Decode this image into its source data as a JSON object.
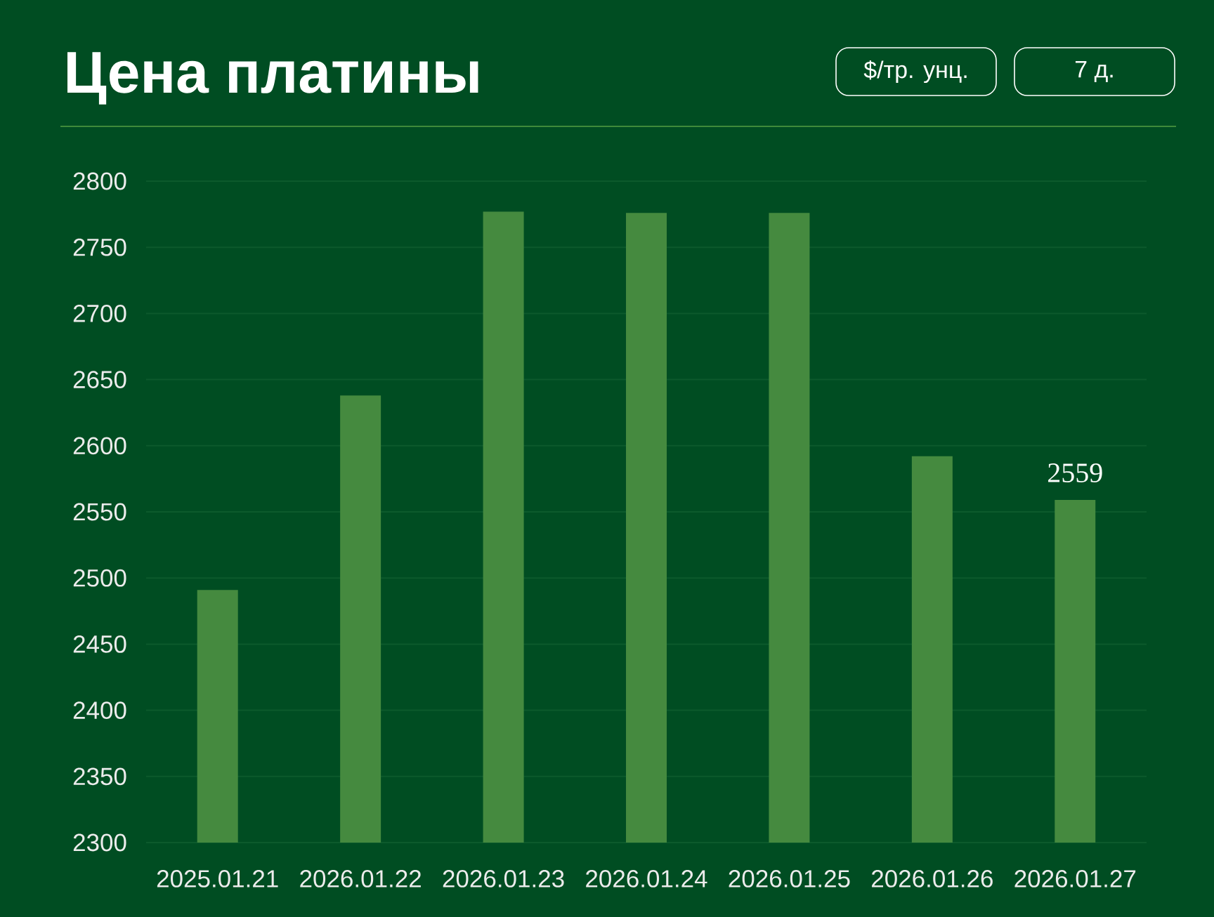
{
  "chart_data": {
    "type": "bar",
    "title": "Цена платины",
    "annotations": [
      "$/тр. унц.",
      "7 д."
    ],
    "categories": [
      "2025.01.21",
      "2026.01.22",
      "2026.01.23",
      "2026.01.24",
      "2026.01.25",
      "2026.01.26",
      "2026.01.27"
    ],
    "values": [
      2491,
      2638,
      2777,
      2776,
      2776,
      2592,
      2559
    ],
    "color": "#458a3f",
    "value_labels": [
      null,
      null,
      null,
      null,
      null,
      null,
      "2559"
    ],
    "ylim": [
      2300,
      2800
    ],
    "yticks": [
      2300,
      2350,
      2400,
      2450,
      2500,
      2550,
      2600,
      2650,
      2700,
      2750,
      2800
    ],
    "grid": "y"
  }
}
